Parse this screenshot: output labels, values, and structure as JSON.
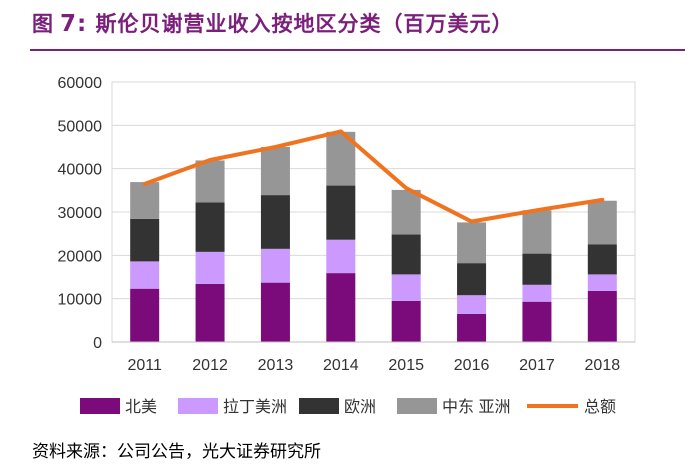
{
  "header": {
    "figure_label": "图",
    "figure_number": "7:",
    "title_text": "斯伦贝谢营业收入按地区分类（百万美元）"
  },
  "source": "资料来源：公司公告，光大证券研究所",
  "chart_data": {
    "type": "bar",
    "stacked": true,
    "title": "斯伦贝谢营业收入按地区分类（百万美元）",
    "xlabel": "",
    "ylabel": "",
    "ylim": [
      0,
      60000
    ],
    "yticks": [
      "0",
      "10000",
      "20000",
      "30000",
      "40000",
      "50000",
      "60000"
    ],
    "categories": [
      "2011",
      "2012",
      "2013",
      "2014",
      "2015",
      "2016",
      "2017",
      "2018"
    ],
    "series": [
      {
        "name": "北美",
        "color": "#7b0a7b",
        "values": [
          12300,
          13400,
          13700,
          15900,
          9500,
          6500,
          9300,
          11800
        ]
      },
      {
        "name": "拉丁美洲",
        "color": "#cc99ff",
        "values": [
          6300,
          7400,
          7800,
          7700,
          6100,
          4300,
          3900,
          3800
        ]
      },
      {
        "name": "欧洲",
        "color": "#333333",
        "values": [
          9800,
          11400,
          12400,
          12500,
          9200,
          7400,
          7200,
          6900
        ]
      },
      {
        "name": "中东 亚洲",
        "color": "#969696",
        "values": [
          8500,
          9700,
          11100,
          12400,
          10300,
          9400,
          10000,
          10100
        ]
      }
    ],
    "line": {
      "name": "总额",
      "color": "#f07320",
      "values": [
        36500,
        42000,
        45000,
        48600,
        35500,
        27800,
        30400,
        32800
      ]
    },
    "legend_position": "bottom"
  }
}
